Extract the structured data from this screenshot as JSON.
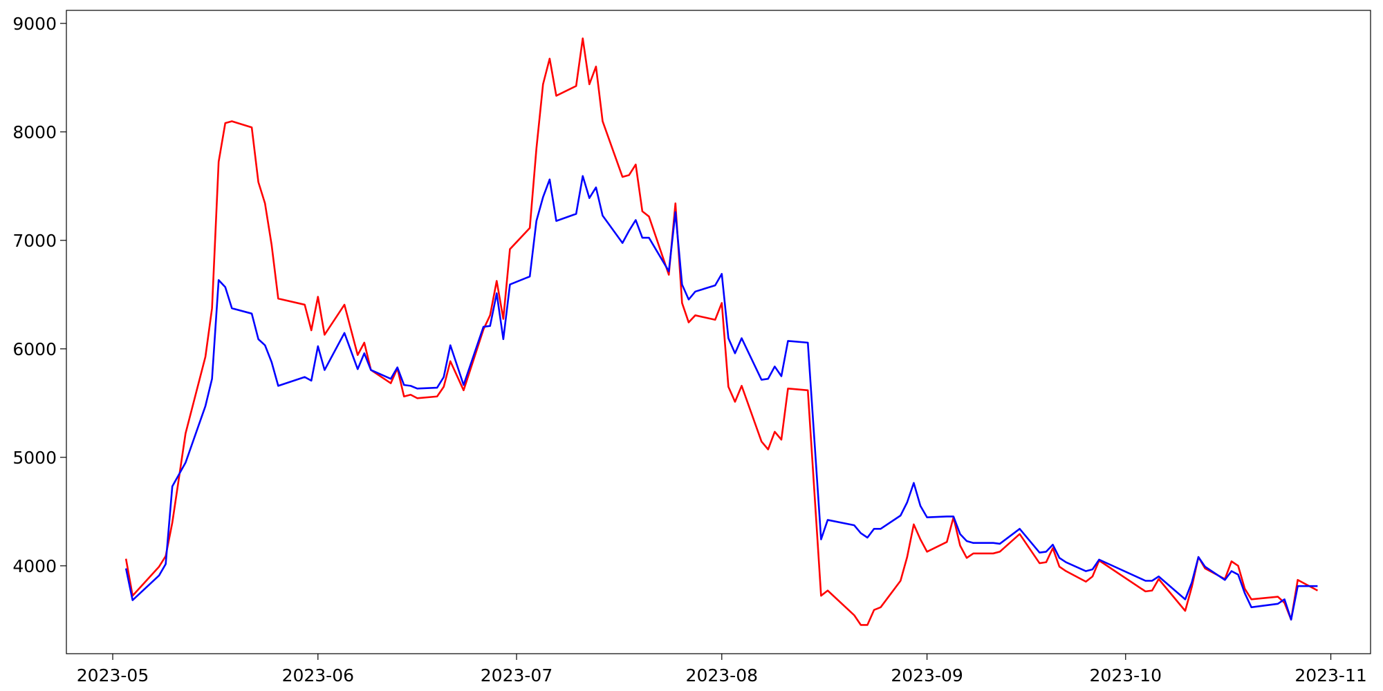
{
  "chart_data": {
    "type": "line",
    "x": [
      "2023-05-03",
      "2023-05-04",
      "2023-05-08",
      "2023-05-09",
      "2023-05-10",
      "2023-05-12",
      "2023-05-15",
      "2023-05-16",
      "2023-05-17",
      "2023-05-18",
      "2023-05-19",
      "2023-05-22",
      "2023-05-23",
      "2023-05-24",
      "2023-05-25",
      "2023-05-26",
      "2023-05-30",
      "2023-05-31",
      "2023-06-01",
      "2023-06-02",
      "2023-06-05",
      "2023-06-07",
      "2023-06-08",
      "2023-06-09",
      "2023-06-12",
      "2023-06-13",
      "2023-06-14",
      "2023-06-15",
      "2023-06-16",
      "2023-06-19",
      "2023-06-20",
      "2023-06-21",
      "2023-06-23",
      "2023-06-26",
      "2023-06-27",
      "2023-06-28",
      "2023-06-29",
      "2023-06-30",
      "2023-07-03",
      "2023-07-04",
      "2023-07-05",
      "2023-07-06",
      "2023-07-07",
      "2023-07-10",
      "2023-07-11",
      "2023-07-12",
      "2023-07-13",
      "2023-07-14",
      "2023-07-17",
      "2023-07-18",
      "2023-07-19",
      "2023-07-20",
      "2023-07-21",
      "2023-07-24",
      "2023-07-25",
      "2023-07-26",
      "2023-07-27",
      "2023-07-28",
      "2023-07-31",
      "2023-08-01",
      "2023-08-02",
      "2023-08-03",
      "2023-08-04",
      "2023-08-07",
      "2023-08-08",
      "2023-08-09",
      "2023-08-10",
      "2023-08-11",
      "2023-08-14",
      "2023-08-16",
      "2023-08-17",
      "2023-08-21",
      "2023-08-22",
      "2023-08-23",
      "2023-08-24",
      "2023-08-25",
      "2023-08-28",
      "2023-08-29",
      "2023-08-30",
      "2023-08-31",
      "2023-09-01",
      "2023-09-04",
      "2023-09-05",
      "2023-09-06",
      "2023-09-07",
      "2023-09-08",
      "2023-09-11",
      "2023-09-12",
      "2023-09-15",
      "2023-09-18",
      "2023-09-19",
      "2023-09-20",
      "2023-09-21",
      "2023-09-22",
      "2023-09-25",
      "2023-09-26",
      "2023-09-27",
      "2023-10-04",
      "2023-10-05",
      "2023-10-06",
      "2023-10-10",
      "2023-10-11",
      "2023-10-12",
      "2023-10-13",
      "2023-10-16",
      "2023-10-17",
      "2023-10-18",
      "2023-10-19",
      "2023-10-20",
      "2023-10-24",
      "2023-10-25",
      "2023-10-26",
      "2023-10-27",
      "2023-10-30"
    ],
    "series": [
      {
        "color": "#ff0000",
        "values": [
          4065,
          3724,
          3992,
          4089,
          4398,
          5220,
          5927,
          6374,
          7724,
          8081,
          8098,
          8041,
          7537,
          7341,
          6959,
          6463,
          6407,
          6171,
          6480,
          6130,
          6407,
          5943,
          6057,
          5805,
          5683,
          5821,
          5561,
          5577,
          5545,
          5561,
          5650,
          5886,
          5618,
          6179,
          6309,
          6626,
          6276,
          6919,
          7114,
          7846,
          8439,
          8675,
          8333,
          8423,
          8862,
          8439,
          8602,
          8098,
          7585,
          7602,
          7699,
          7268,
          7220,
          6683,
          7341,
          6423,
          6244,
          6309,
          6268,
          6423,
          5650,
          5512,
          5659,
          5146,
          5073,
          5236,
          5163,
          5634,
          5618,
          3724,
          3772,
          3545,
          3455,
          3455,
          3593,
          3618,
          3862,
          4081,
          4382,
          4244,
          4130,
          4220,
          4447,
          4187,
          4073,
          4114,
          4114,
          4130,
          4293,
          4024,
          4033,
          4163,
          3992,
          3951,
          3854,
          3902,
          4049,
          3764,
          3772,
          3878,
          3585,
          3805,
          4081,
          3976,
          3878,
          4041,
          4000,
          3789,
          3691,
          3715,
          3659,
          3504,
          3870,
          3772
        ]
      },
      {
        "color": "#0000ff",
        "values": [
          3976,
          3683,
          3911,
          4016,
          4732,
          4951,
          5472,
          5724,
          6634,
          6569,
          6374,
          6325,
          6089,
          6033,
          5878,
          5659,
          5740,
          5707,
          6024,
          5805,
          6146,
          5813,
          5959,
          5805,
          5724,
          5829,
          5667,
          5659,
          5634,
          5642,
          5740,
          6033,
          5667,
          6203,
          6211,
          6512,
          6089,
          6593,
          6667,
          7179,
          7398,
          7561,
          7179,
          7244,
          7593,
          7390,
          7488,
          7228,
          6976,
          7089,
          7187,
          7024,
          7024,
          6715,
          7260,
          6593,
          6455,
          6528,
          6585,
          6691,
          6098,
          5959,
          6098,
          5715,
          5724,
          5837,
          5748,
          6073,
          6057,
          4244,
          4423,
          4374,
          4301,
          4260,
          4341,
          4341,
          4463,
          4585,
          4764,
          4553,
          4447,
          4455,
          4455,
          4293,
          4228,
          4211,
          4211,
          4203,
          4341,
          4122,
          4130,
          4195,
          4073,
          4033,
          3951,
          3967,
          4057,
          3862,
          3862,
          3902,
          3691,
          3846,
          4081,
          3992,
          3870,
          3951,
          3919,
          3748,
          3618,
          3650,
          3691,
          3504,
          3813,
          3813
        ]
      }
    ],
    "xlim": [
      "2023-04-24",
      "2023-11-07"
    ],
    "xticks": [
      {
        "value": "2023-05-01",
        "label": "2023-05"
      },
      {
        "value": "2023-06-01",
        "label": "2023-06"
      },
      {
        "value": "2023-07-01",
        "label": "2023-07"
      },
      {
        "value": "2023-08-01",
        "label": "2023-08"
      },
      {
        "value": "2023-09-01",
        "label": "2023-09"
      },
      {
        "value": "2023-10-01",
        "label": "2023-10"
      },
      {
        "value": "2023-11-01",
        "label": "2023-11"
      }
    ],
    "ylim": [
      3190,
      9120
    ],
    "yticks": [
      4000,
      5000,
      6000,
      7000,
      8000,
      9000
    ],
    "grid": false
  }
}
